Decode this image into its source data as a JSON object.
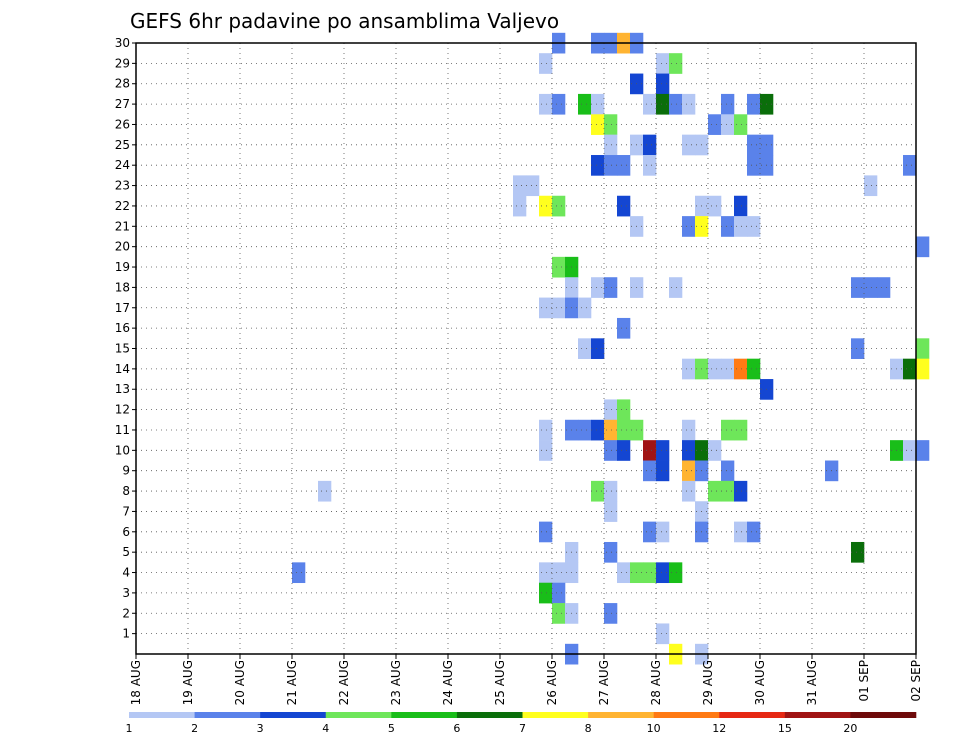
{
  "chart_data": {
    "type": "heatmap",
    "title": "GEFS 6hr padavine po ansamblima Valjevo",
    "xlabel": "",
    "ylabel": "",
    "x_ticks": [
      "18 AUG",
      "19 AUG",
      "20 AUG",
      "21 AUG",
      "22 AUG",
      "23 AUG",
      "24 AUG",
      "25 AUG",
      "26 AUG",
      "27 AUG",
      "28 AUG",
      "29 AUG",
      "30 AUG",
      "31 AUG",
      "01 SEP",
      "02 SEP"
    ],
    "y_ticks": [
      1,
      2,
      3,
      4,
      5,
      6,
      7,
      8,
      9,
      10,
      11,
      12,
      13,
      14,
      15,
      16,
      17,
      18,
      19,
      20,
      21,
      22,
      23,
      24,
      25,
      26,
      27,
      28,
      29,
      30
    ],
    "x_step_hours": 6,
    "y_range": [
      0,
      30
    ],
    "grid": true,
    "colorbar": {
      "placement": "bottom",
      "levels": [
        1,
        2,
        3,
        4,
        5,
        6,
        7,
        8,
        10,
        12,
        15,
        20
      ],
      "colors": [
        "#b4c7f4",
        "#5a82ea",
        "#1446d2",
        "#6ee65a",
        "#19be19",
        "#0a6e0a",
        "#ffff1e",
        "#ffb432",
        "#ff7a14",
        "#e62814",
        "#a01414",
        "#6e0a0a"
      ]
    },
    "cells": [
      [
        30,
        32,
        2
      ],
      [
        30,
        35,
        2
      ],
      [
        30,
        36,
        2
      ],
      [
        30,
        37,
        8
      ],
      [
        30,
        38,
        2
      ],
      [
        29,
        31,
        1
      ],
      [
        29,
        40,
        1
      ],
      [
        29,
        41,
        4
      ],
      [
        28,
        38,
        3
      ],
      [
        28,
        40,
        3
      ],
      [
        27,
        31,
        1
      ],
      [
        27,
        32,
        2
      ],
      [
        27,
        34,
        5
      ],
      [
        27,
        35,
        1
      ],
      [
        27,
        39,
        1
      ],
      [
        27,
        40,
        6
      ],
      [
        27,
        41,
        2
      ],
      [
        27,
        42,
        1
      ],
      [
        27,
        45,
        2
      ],
      [
        27,
        47,
        2
      ],
      [
        27,
        48,
        6
      ],
      [
        26,
        35,
        7
      ],
      [
        26,
        36,
        4
      ],
      [
        26,
        44,
        2
      ],
      [
        26,
        45,
        1
      ],
      [
        26,
        46,
        4
      ],
      [
        25,
        36,
        1
      ],
      [
        25,
        38,
        1
      ],
      [
        25,
        39,
        3
      ],
      [
        25,
        42,
        1
      ],
      [
        25,
        43,
        1
      ],
      [
        25,
        47,
        2
      ],
      [
        25,
        48,
        2
      ],
      [
        24,
        35,
        3
      ],
      [
        24,
        36,
        2
      ],
      [
        24,
        37,
        2
      ],
      [
        24,
        39,
        1
      ],
      [
        24,
        47,
        2
      ],
      [
        24,
        48,
        2
      ],
      [
        24,
        59,
        2
      ],
      [
        23,
        29,
        1
      ],
      [
        23,
        30,
        1
      ],
      [
        23,
        56,
        1
      ],
      [
        22,
        29,
        1
      ],
      [
        22,
        31,
        7
      ],
      [
        22,
        32,
        4
      ],
      [
        22,
        37,
        3
      ],
      [
        22,
        43,
        1
      ],
      [
        22,
        44,
        1
      ],
      [
        22,
        46,
        3
      ],
      [
        21,
        38,
        1
      ],
      [
        21,
        42,
        2
      ],
      [
        21,
        43,
        7
      ],
      [
        21,
        45,
        2
      ],
      [
        21,
        46,
        1
      ],
      [
        21,
        47,
        1
      ],
      [
        20,
        60,
        2
      ],
      [
        19,
        32,
        4
      ],
      [
        19,
        33,
        5
      ],
      [
        18,
        33,
        1
      ],
      [
        18,
        35,
        1
      ],
      [
        18,
        36,
        2
      ],
      [
        18,
        38,
        1
      ],
      [
        18,
        41,
        1
      ],
      [
        18,
        55,
        2
      ],
      [
        18,
        56,
        2
      ],
      [
        18,
        57,
        2
      ],
      [
        17,
        31,
        1
      ],
      [
        17,
        32,
        1
      ],
      [
        17,
        33,
        2
      ],
      [
        17,
        34,
        1
      ],
      [
        16,
        37,
        2
      ],
      [
        15,
        34,
        1
      ],
      [
        15,
        35,
        3
      ],
      [
        15,
        55,
        2
      ],
      [
        15,
        60,
        4
      ],
      [
        14,
        42,
        1
      ],
      [
        14,
        43,
        4
      ],
      [
        14,
        44,
        1
      ],
      [
        14,
        45,
        1
      ],
      [
        14,
        46,
        9
      ],
      [
        14,
        47,
        5
      ],
      [
        14,
        58,
        1
      ],
      [
        14,
        59,
        6
      ],
      [
        14,
        60,
        7
      ],
      [
        13,
        48,
        3
      ],
      [
        12,
        36,
        1
      ],
      [
        12,
        37,
        4
      ],
      [
        11,
        31,
        1
      ],
      [
        11,
        33,
        2
      ],
      [
        11,
        34,
        2
      ],
      [
        11,
        35,
        3
      ],
      [
        11,
        36,
        8
      ],
      [
        11,
        37,
        4
      ],
      [
        11,
        38,
        4
      ],
      [
        11,
        42,
        1
      ],
      [
        11,
        45,
        4
      ],
      [
        11,
        46,
        4
      ],
      [
        10,
        31,
        1
      ],
      [
        10,
        36,
        2
      ],
      [
        10,
        37,
        3
      ],
      [
        10,
        39,
        11
      ],
      [
        10,
        40,
        3
      ],
      [
        10,
        42,
        3
      ],
      [
        10,
        43,
        6
      ],
      [
        10,
        44,
        1
      ],
      [
        10,
        58,
        5
      ],
      [
        10,
        59,
        1
      ],
      [
        10,
        60,
        2
      ],
      [
        9,
        39,
        2
      ],
      [
        9,
        40,
        3
      ],
      [
        9,
        42,
        8
      ],
      [
        9,
        43,
        2
      ],
      [
        9,
        45,
        2
      ],
      [
        9,
        53,
        2
      ],
      [
        8,
        14,
        1
      ],
      [
        8,
        35,
        4
      ],
      [
        8,
        36,
        1
      ],
      [
        8,
        42,
        1
      ],
      [
        8,
        44,
        4
      ],
      [
        8,
        45,
        4
      ],
      [
        8,
        46,
        3
      ],
      [
        7,
        36,
        1
      ],
      [
        7,
        43,
        1
      ],
      [
        6,
        31,
        2
      ],
      [
        6,
        39,
        2
      ],
      [
        6,
        40,
        1
      ],
      [
        6,
        43,
        2
      ],
      [
        6,
        46,
        1
      ],
      [
        6,
        47,
        2
      ],
      [
        5,
        33,
        1
      ],
      [
        5,
        36,
        2
      ],
      [
        5,
        55,
        6
      ],
      [
        4,
        12,
        2
      ],
      [
        4,
        31,
        1
      ],
      [
        4,
        32,
        1
      ],
      [
        4,
        33,
        1
      ],
      [
        4,
        37,
        1
      ],
      [
        4,
        38,
        4
      ],
      [
        4,
        39,
        4
      ],
      [
        4,
        40,
        3
      ],
      [
        4,
        41,
        5
      ],
      [
        3,
        31,
        5
      ],
      [
        3,
        32,
        2
      ],
      [
        2,
        32,
        4
      ],
      [
        2,
        33,
        1
      ],
      [
        2,
        36,
        2
      ],
      [
        1,
        40,
        1
      ],
      [
        0,
        33,
        2
      ],
      [
        0,
        41,
        7
      ],
      [
        0,
        43,
        1
      ]
    ]
  }
}
